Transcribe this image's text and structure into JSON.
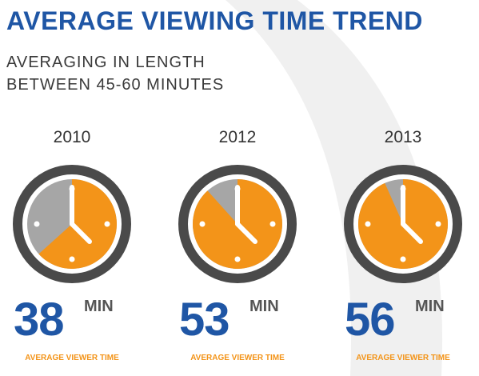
{
  "title": "AVERAGE VIEWING TIME TREND",
  "subtitle_lines": [
    "AVERAGING IN LENGTH",
    "BETWEEN 45-60 MINUTES"
  ],
  "colors": {
    "title": "#1f56a5",
    "value": "#1f56a5",
    "accent": "#f39419",
    "ring": "#4a4a4a",
    "gray": "#a6a6a6",
    "background_arc": "#f0f0f0"
  },
  "chart_data": {
    "type": "pie",
    "categories": [
      "2010",
      "2012",
      "2013"
    ],
    "values": [
      38,
      53,
      56
    ],
    "full_scale": 60,
    "unit": "MIN",
    "caption": "AVERAGE VIEWER TIME"
  }
}
